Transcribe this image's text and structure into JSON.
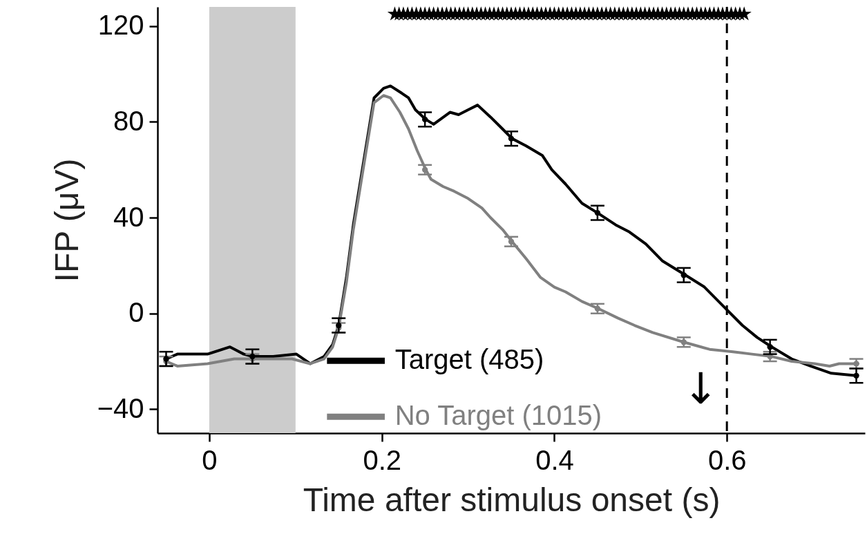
{
  "chart_data": {
    "type": "line",
    "xlabel": "Time after stimulus onset (s)",
    "ylabel": "IFP (μV)",
    "xlim": [
      -0.06,
      0.76
    ],
    "xticks": [
      0,
      0.2,
      0.4,
      0.6
    ],
    "ylim": [
      -50,
      128
    ],
    "yticks": [
      {
        "value": -40,
        "label": "−40"
      },
      0,
      40,
      80,
      120
    ],
    "legend": "bottom",
    "line_style": "solid",
    "series": [
      {
        "name": "Target (485)",
        "color": "#000000",
        "x": [
          -0.05,
          -0.037,
          -0.002,
          0.024,
          0.04,
          0.05,
          0.074,
          0.101,
          0.117,
          0.133,
          0.143,
          0.15,
          0.159,
          0.167,
          0.181,
          0.191,
          0.202,
          0.21,
          0.223,
          0.231,
          0.239,
          0.251,
          0.26,
          0.279,
          0.289,
          0.3,
          0.311,
          0.326,
          0.34,
          0.351,
          0.367,
          0.386,
          0.397,
          0.413,
          0.432,
          0.45,
          0.471,
          0.487,
          0.506,
          0.525,
          0.552,
          0.574,
          0.596,
          0.618,
          0.635,
          0.652,
          0.675,
          0.697,
          0.721,
          0.75
        ],
        "values": [
          -19,
          -17,
          -17,
          -14,
          -17,
          -18,
          -18,
          -17,
          -21,
          -18,
          -13,
          -5,
          15,
          37,
          68,
          90,
          94,
          95,
          92,
          90,
          85,
          81,
          79,
          84,
          83,
          85,
          87,
          82,
          77,
          73,
          70,
          66,
          60,
          54,
          46,
          42,
          37,
          34,
          29,
          22,
          16,
          11,
          3,
          -5,
          -10,
          -14,
          -19,
          -22,
          -25,
          -26
        ]
      },
      {
        "name": "No Target (1015)",
        "color": "#808080",
        "x": [
          -0.05,
          -0.037,
          -0.002,
          0.029,
          0.05,
          0.096,
          0.117,
          0.133,
          0.143,
          0.15,
          0.159,
          0.167,
          0.181,
          0.191,
          0.202,
          0.21,
          0.221,
          0.231,
          0.241,
          0.251,
          0.257,
          0.271,
          0.284,
          0.3,
          0.316,
          0.326,
          0.34,
          0.351,
          0.367,
          0.384,
          0.4,
          0.413,
          0.432,
          0.451,
          0.474,
          0.493,
          0.514,
          0.55,
          0.58,
          0.607,
          0.629,
          0.652,
          0.675,
          0.702,
          0.719,
          0.73,
          0.752
        ],
        "values": [
          -20,
          -22,
          -21,
          -19,
          -19,
          -19,
          -21,
          -19,
          -14,
          -6,
          13,
          35,
          66,
          88,
          91,
          90,
          84,
          77,
          68,
          60,
          56,
          53,
          51,
          48,
          44,
          40,
          35,
          30,
          23,
          15,
          11,
          9,
          5,
          2,
          -2,
          -5,
          -8,
          -12,
          -15,
          -16,
          -17,
          -18,
          -20,
          -21,
          -22,
          -21,
          -21
        ]
      },
      {
        "type": "scatter",
        "color": "#000000",
        "marker": "circle",
        "x": [
          -0.05,
          0.05,
          0.15,
          0.25,
          0.35,
          0.45,
          0.55,
          0.65,
          0.75
        ],
        "values": [
          -19,
          -18,
          -5,
          81,
          73,
          42,
          16,
          -14,
          -26
        ],
        "errors": [
          3,
          3,
          3,
          3,
          3,
          3,
          3,
          3,
          3
        ]
      },
      {
        "type": "scatter",
        "color": "#808080",
        "marker": "circle",
        "x": [
          -0.05,
          0.05,
          0.15,
          0.25,
          0.35,
          0.45,
          0.55,
          0.65,
          0.75
        ],
        "values": [
          -20,
          -19,
          -6,
          60,
          30,
          2,
          -12,
          -18,
          -21
        ],
        "errors": [
          2,
          2,
          2,
          2,
          2,
          2,
          2,
          2,
          2
        ]
      },
      {
        "type": "scatter",
        "color": "#000000",
        "marker": "star",
        "x": [
          0.215,
          0.22,
          0.225,
          0.23,
          0.235,
          0.24,
          0.245,
          0.25,
          0.255,
          0.26,
          0.265,
          0.27,
          0.275,
          0.28,
          0.285,
          0.29,
          0.295,
          0.3,
          0.305,
          0.31,
          0.315,
          0.32,
          0.325,
          0.33,
          0.335,
          0.34,
          0.345,
          0.35,
          0.355,
          0.36,
          0.365,
          0.37,
          0.375,
          0.38,
          0.385,
          0.39,
          0.395,
          0.4,
          0.405,
          0.41,
          0.415,
          0.42,
          0.425,
          0.43,
          0.435,
          0.44,
          0.445,
          0.45,
          0.455,
          0.46,
          0.465,
          0.47,
          0.475,
          0.48,
          0.485,
          0.49,
          0.495,
          0.5,
          0.505,
          0.51,
          0.515,
          0.52,
          0.525,
          0.53,
          0.535,
          0.54,
          0.545,
          0.55,
          0.555,
          0.56,
          0.565,
          0.57,
          0.575,
          0.58,
          0.585,
          0.59,
          0.595,
          0.6,
          0.605,
          0.61,
          0.615,
          0.62
        ],
        "values": [
          125,
          125,
          125,
          125,
          125,
          125,
          125,
          125,
          125,
          125,
          125,
          125,
          125,
          125,
          125,
          125,
          125,
          125,
          125,
          125,
          125,
          125,
          125,
          125,
          125,
          125,
          125,
          125,
          125,
          125,
          125,
          125,
          125,
          125,
          125,
          125,
          125,
          125,
          125,
          125,
          125,
          125,
          125,
          125,
          125,
          125,
          125,
          125,
          125,
          125,
          125,
          125,
          125,
          125,
          125,
          125,
          125,
          125,
          125,
          125,
          125,
          125,
          125,
          125,
          125,
          125,
          125,
          125,
          125,
          125,
          125,
          125,
          125,
          125,
          125,
          125,
          125,
          125,
          125,
          125,
          125,
          125
        ]
      }
    ],
    "bands": [
      {
        "axis": "x",
        "from": 0,
        "to": 0.1,
        "color": "#cccccc"
      }
    ],
    "ref_lines": [
      {
        "axis": "x",
        "value": 0.6,
        "line_style": "dashed",
        "color": "#000000"
      }
    ],
    "annotations": [
      "↓"
    ]
  }
}
